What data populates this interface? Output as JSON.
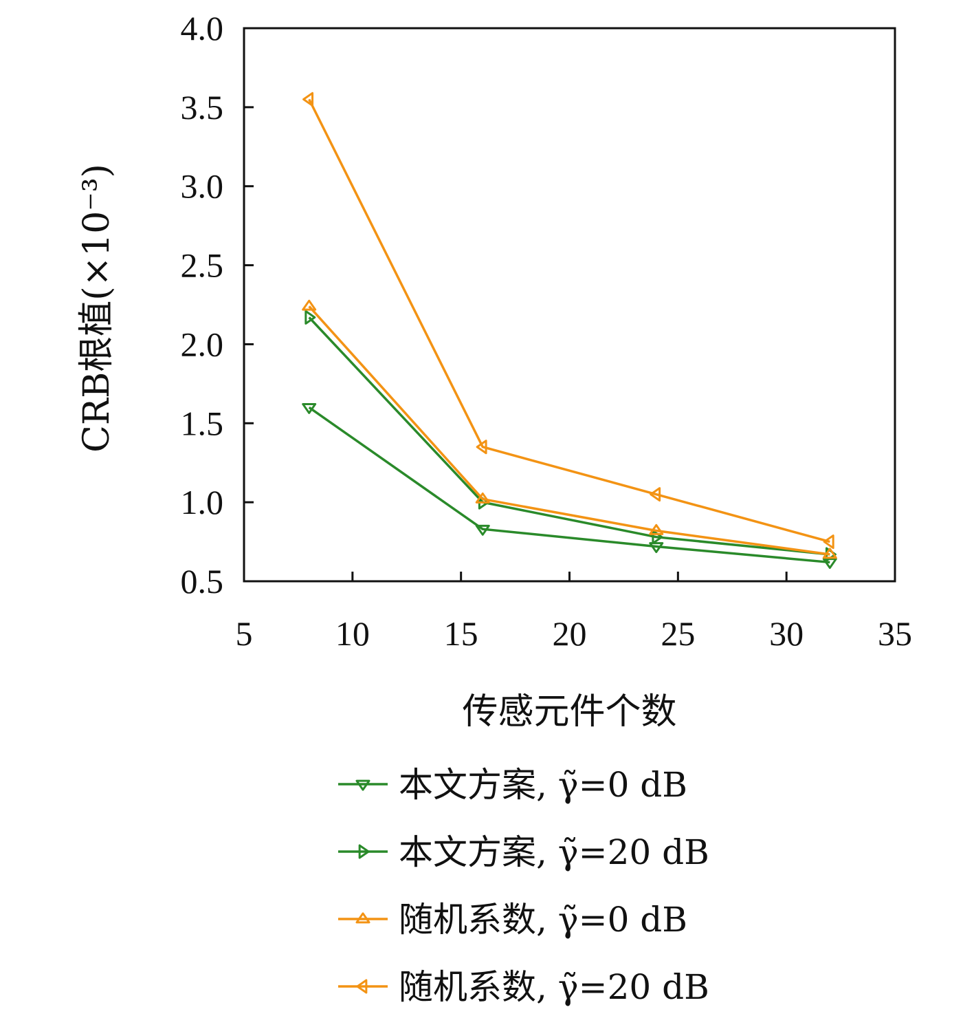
{
  "chart_data": {
    "type": "line",
    "xlabel": "传感元件个数",
    "ylabel": "CRB根植(×10⁻³)",
    "xlim": [
      5,
      35
    ],
    "ylim": [
      0.5,
      4.0
    ],
    "xticks": [
      "5",
      "10",
      "15",
      "20",
      "25",
      "30",
      "35"
    ],
    "yticks": [
      "0.5",
      "1.0",
      "1.5",
      "2.0",
      "2.5",
      "3.0",
      "3.5",
      "4.0"
    ],
    "grid": false,
    "legend_position": "bottom",
    "x": [
      8,
      16,
      24,
      32
    ],
    "series": [
      {
        "name": "本文方案, γ̃=0 dB",
        "values": [
          1.6,
          0.83,
          0.72,
          0.62
        ],
        "color": "#2a8a2a",
        "marker": "triangle-down"
      },
      {
        "name": "本文方案, γ̃=20 dB",
        "values": [
          2.17,
          1.0,
          0.78,
          0.67
        ],
        "color": "#2a8a2a",
        "marker": "triangle-right"
      },
      {
        "name": "随机系数, γ̃=0 dB",
        "values": [
          2.24,
          1.02,
          0.82,
          0.67
        ],
        "color": "#f39314",
        "marker": "triangle-up"
      },
      {
        "name": "随机系数, γ̃=20 dB",
        "values": [
          3.55,
          1.35,
          1.05,
          0.75
        ],
        "color": "#f39314",
        "marker": "triangle-left"
      }
    ]
  }
}
